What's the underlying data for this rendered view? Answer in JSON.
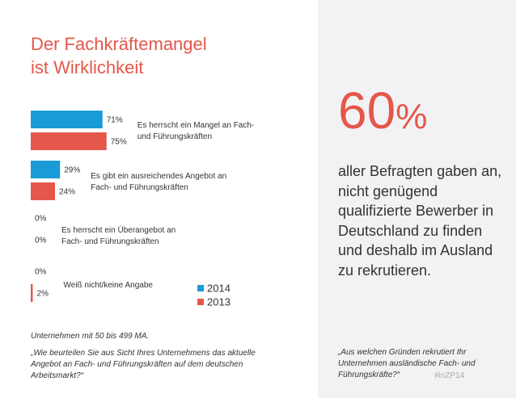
{
  "title": "Der Fachkräftemangel\nist Wirklichkeit",
  "chart_data": {
    "type": "bar",
    "orientation": "horizontal",
    "categories": [
      "Es herrscht ein Mangel an Fach-\nund Führungskräften",
      "Es gibt ein ausreichendes Angebot an\nFach- und Führungskräften",
      "Es herrscht ein Überangebot an\nFach- und Führungskräften",
      "Weiß nicht/keine Angabe"
    ],
    "series": [
      {
        "name": "2014",
        "color": "#1a9ad6",
        "values": [
          71,
          29,
          0,
          0
        ],
        "value_labels": [
          "71%",
          "29%",
          "0%",
          "0%"
        ]
      },
      {
        "name": "2013",
        "color": "#e4574a",
        "values": [
          75,
          24,
          0,
          2
        ],
        "value_labels": [
          "75%",
          "24%",
          "0%",
          "2%"
        ]
      }
    ],
    "xlim": [
      0,
      100
    ]
  },
  "footnote": "Unternehmen mit 50 bis 499 MA.",
  "question_left": "„Wie beurteilen Sie aus Sicht Ihres Unternehmens das aktuelle Angebot an Fach- und Führungskräften auf dem deutschen Arbeitsmarkt?“",
  "stat": {
    "number": "60",
    "unit": "%"
  },
  "stat_text": "aller Befragten gaben an, nicht genügend qualifizierte Bewerber in Deutschland zu finden und deshalb im Ausland zu rekrutieren.",
  "question_right": "„Aus welchen Gründen rekrutiert Ihr Unternehmen ausländische Fach- und Führungskräfte?“",
  "hashtag": "#inZP14"
}
